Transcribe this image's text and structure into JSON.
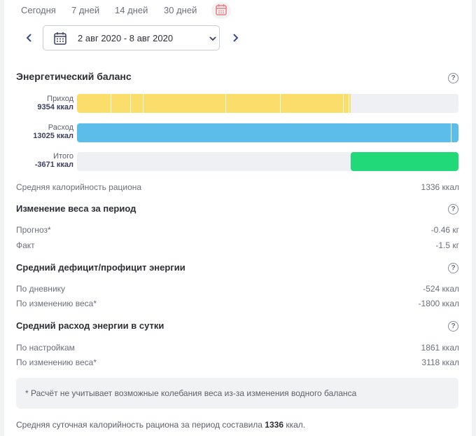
{
  "period_tabs": [
    "Сегодня",
    "7 дней",
    "14 дней",
    "30 дней"
  ],
  "calendar_icon": "calendar-icon",
  "accent_color": "#f07a7a",
  "date_range": "2 авг 2020 - 8 авг 2020",
  "energy_balance": {
    "title": "Энергетический баланс",
    "help": "?",
    "bars": [
      {
        "label": "Приход",
        "value": "9354 ккал",
        "color": "#fadd6b",
        "fraction": 0.718
      },
      {
        "label": "Расход",
        "value": "13025 ккал",
        "color": "#5cbdeb",
        "fraction": 1.0
      },
      {
        "label": "Итого",
        "value": "-3671 ккал",
        "color": "#22d97a",
        "fraction": 0.282
      }
    ],
    "avg_calories_label": "Средняя калорийность рациона",
    "avg_calories_value": "1336 ккал"
  },
  "weight_change": {
    "title": "Изменение веса за период",
    "help": "?",
    "rows": [
      {
        "label": "Прогноз*",
        "value": "-0.46 кг"
      },
      {
        "label": "Факт",
        "value": "-1.5 кг"
      }
    ]
  },
  "deficit": {
    "title": "Средний дефицит/профицит энергии",
    "help": "?",
    "rows": [
      {
        "label": "По дневнику",
        "value": "-524 ккал"
      },
      {
        "label": "По изменению веса*",
        "value": "-1800 ккал"
      }
    ]
  },
  "daily_expense": {
    "title": "Средний расход энергии в сутки",
    "help": "?",
    "rows": [
      {
        "label": "По настройкам",
        "value": "1861 ккал"
      },
      {
        "label": "По изменению веса*",
        "value": "3118 ккал"
      }
    ]
  },
  "note": "* Расчёт не учитывает возможные колебания веса из-за изменения водного баланса",
  "summary": {
    "text": "Средняя суточная калорийность рациона за период составила ",
    "value": "1336",
    "unit": " ккал."
  }
}
